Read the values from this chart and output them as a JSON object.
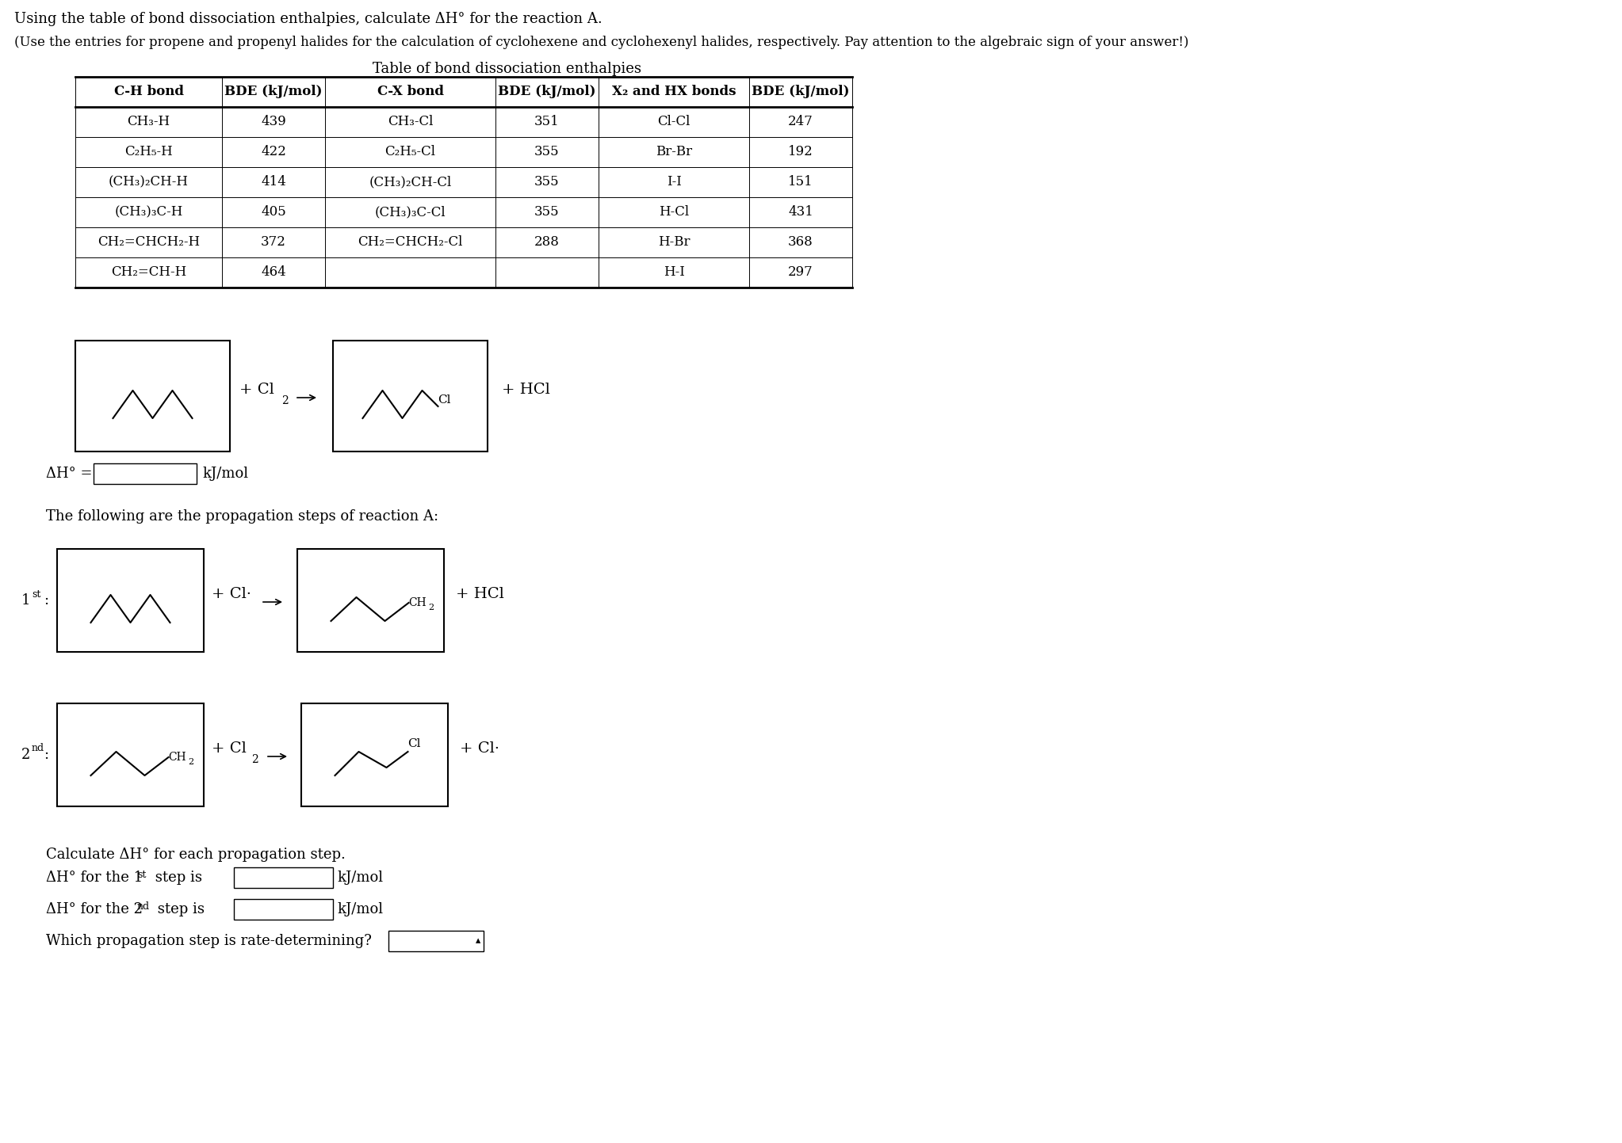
{
  "title_line1": "Using the table of bond dissociation enthalpies, calculate ΔH° for the reaction A.",
  "title_line2": "(Use the entries for propene and propenyl halides for the calculation of cyclohexene and cyclohexenyl halides, respectively. Pay attention to the algebraic sign of your answer!)",
  "table_title": "Table of bond dissociation enthalpies",
  "col_headers": [
    "C-H bond",
    "BDE (kJ/mol)",
    "C-X bond",
    "BDE (kJ/mol)",
    "X₂ and HX bonds",
    "BDE (kJ/mol)"
  ],
  "table_data": [
    [
      "CH₃-H",
      "439",
      "CH₃-Cl",
      "351",
      "Cl-Cl",
      "247"
    ],
    [
      "C₂H₅-H",
      "422",
      "C₂H₅-Cl",
      "355",
      "Br-Br",
      "192"
    ],
    [
      "(CH₃)₂CH-H",
      "414",
      "(CH₃)₂CH-Cl",
      "355",
      "I-I",
      "151"
    ],
    [
      "(CH₃)₃C-H",
      "405",
      "(CH₃)₃C-Cl",
      "355",
      "H-Cl",
      "431"
    ],
    [
      "CH₂=CHCH₂-H",
      "372",
      "CH₂=CHCH₂-Cl",
      "288",
      "H-Br",
      "368"
    ],
    [
      "CH₂=CH-H",
      "464",
      "",
      "",
      "H-I",
      "297"
    ]
  ],
  "background_color": "#ffffff",
  "text_color": "#000000"
}
